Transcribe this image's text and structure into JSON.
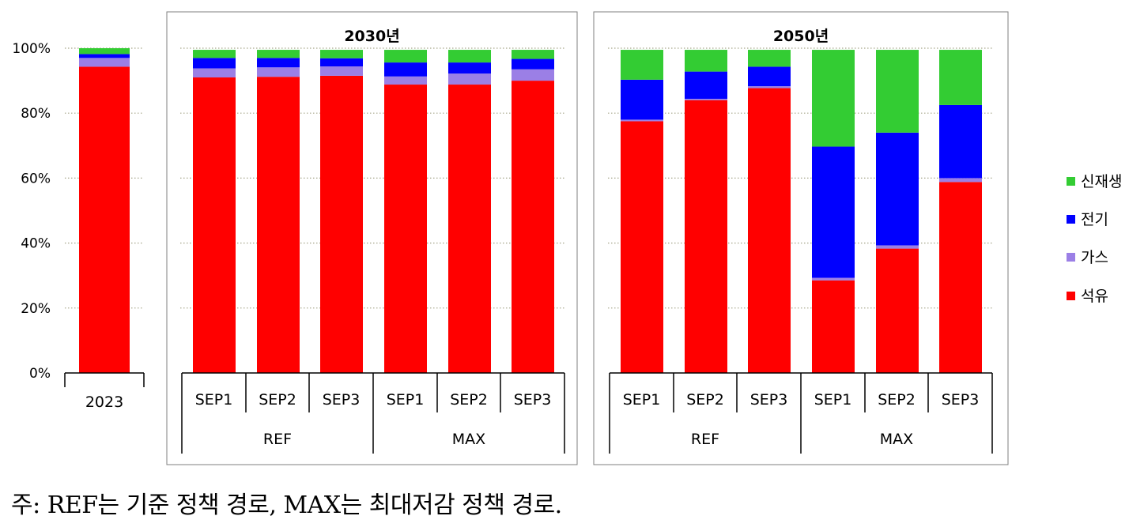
{
  "chart_data": {
    "type": "bar",
    "stacked": true,
    "ylim": [
      0,
      100
    ],
    "yticks": [
      "0%",
      "20%",
      "40%",
      "60%",
      "80%",
      "100%"
    ],
    "grid": "horizontal dotted",
    "legend_position": "right",
    "colors": {
      "석유": "#ff0000",
      "가스": "#9b7fe6",
      "전기": "#0000ff",
      "신재생": "#33cc33"
    },
    "series_order": [
      "석유",
      "가스",
      "전기",
      "신재생"
    ],
    "legend_order": [
      "신재생",
      "전기",
      "가스",
      "석유"
    ],
    "panels": [
      {
        "title": "",
        "bars": [
          {
            "label": "2023",
            "values": {
              "석유": 94.3,
              "가스": 2.7,
              "전기": 1.2,
              "신재생": 1.8
            }
          }
        ]
      },
      {
        "title": "2030년",
        "groups": [
          {
            "label": "REF",
            "bars": [
              {
                "label": "SEP1",
                "values": {
                  "석유": 91.0,
                  "가스": 2.8,
                  "전기": 3.2,
                  "신재생": 2.5
                }
              },
              {
                "label": "SEP2",
                "values": {
                  "석유": 91.2,
                  "가스": 2.9,
                  "전기": 2.9,
                  "신재생": 2.5
                }
              },
              {
                "label": "SEP3",
                "values": {
                  "석유": 91.5,
                  "가스": 2.9,
                  "전기": 2.5,
                  "신재생": 2.6
                }
              }
            ]
          },
          {
            "label": "MAX",
            "bars": [
              {
                "label": "SEP1",
                "values": {
                  "석유": 88.8,
                  "가스": 2.5,
                  "전기": 4.3,
                  "신재생": 3.9
                }
              },
              {
                "label": "SEP2",
                "values": {
                  "석유": 88.8,
                  "가스": 3.4,
                  "전기": 3.4,
                  "신재생": 3.9
                }
              },
              {
                "label": "SEP3",
                "values": {
                  "석유": 90.0,
                  "가스": 3.5,
                  "전기": 3.2,
                  "신재생": 2.8
                }
              }
            ]
          }
        ]
      },
      {
        "title": "2050년",
        "groups": [
          {
            "label": "REF",
            "bars": [
              {
                "label": "SEP1",
                "values": {
                  "석유": 77.5,
                  "가스": 0.5,
                  "전기": 12.3,
                  "신재생": 9.2
                }
              },
              {
                "label": "SEP2",
                "values": {
                  "석유": 84.0,
                  "가스": 0.4,
                  "전기": 8.4,
                  "신재생": 6.7
                }
              },
              {
                "label": "SEP3",
                "values": {
                  "석유": 87.7,
                  "가스": 0.6,
                  "전기": 6.0,
                  "신재생": 5.2
                }
              }
            ]
          },
          {
            "label": "MAX",
            "bars": [
              {
                "label": "SEP1",
                "values": {
                  "석유": 28.5,
                  "가스": 0.8,
                  "전기": 40.4,
                  "신재생": 29.8
                }
              },
              {
                "label": "SEP2",
                "values": {
                  "석유": 38.3,
                  "가스": 1.0,
                  "전기": 34.7,
                  "신재생": 25.5
                }
              },
              {
                "label": "SEP3",
                "values": {
                  "석유": 58.8,
                  "가스": 1.2,
                  "전기": 22.5,
                  "신재생": 17.0
                }
              }
            ]
          }
        ]
      }
    ]
  },
  "note": "주: REF는 기준 정책 경로, MAX는 최대저감 정책 경로."
}
